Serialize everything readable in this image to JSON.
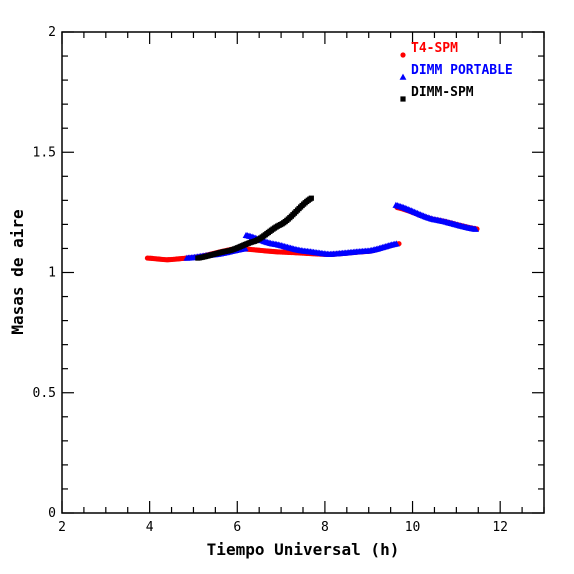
{
  "chart_data": {
    "type": "scatter",
    "xlabel": "Tiempo Universal (h)",
    "ylabel": "Masas de aire",
    "xlim": [
      2,
      13
    ],
    "ylim": [
      0,
      2
    ],
    "x_ticks": [
      "2",
      "4",
      "6",
      "8",
      "10",
      "12"
    ],
    "y_ticks": [
      "0",
      "0.5",
      "1",
      "1.5",
      "2"
    ],
    "legend_position": "top-right",
    "grid": false,
    "series": [
      {
        "name": "T4-SPM",
        "color": "#ff0000",
        "marker": "circle",
        "segments": [
          {
            "x_range": [
              3.95,
              9.7
            ],
            "anchors": [
              [
                3.95,
                1.06
              ],
              [
                4.4,
                1.053
              ],
              [
                5.0,
                1.062
              ],
              [
                6.0,
                1.1
              ],
              [
                7.0,
                1.085
              ],
              [
                8.1,
                1.075
              ],
              [
                9.0,
                1.088
              ],
              [
                9.7,
                1.12
              ]
            ]
          },
          {
            "x_range": [
              9.65,
              11.5
            ],
            "anchors": [
              [
                9.65,
                1.27
              ],
              [
                10.5,
                1.22
              ],
              [
                11.5,
                1.18
              ]
            ]
          }
        ]
      },
      {
        "name": "DIMM PORTABLE",
        "color": "#0000ff",
        "marker": "triangle",
        "segments": [
          {
            "x_range": [
              4.85,
              6.2
            ],
            "anchors": [
              [
                4.85,
                1.06
              ],
              [
                5.5,
                1.075
              ],
              [
                6.2,
                1.1
              ]
            ]
          },
          {
            "x_range": [
              6.2,
              9.65
            ],
            "anchors": [
              [
                6.2,
                1.155
              ],
              [
                6.8,
                1.12
              ],
              [
                7.5,
                1.09
              ],
              [
                8.1,
                1.076
              ],
              [
                9.0,
                1.09
              ],
              [
                9.65,
                1.12
              ]
            ]
          },
          {
            "x_range": [
              9.62,
              11.45
            ],
            "anchors": [
              [
                9.62,
                1.28
              ],
              [
                10.5,
                1.22
              ],
              [
                11.45,
                1.18
              ]
            ]
          }
        ]
      },
      {
        "name": "DIMM-SPM",
        "color": "#000000",
        "marker": "square",
        "segments": [
          {
            "x_range": [
              5.1,
              7.7
            ],
            "anchors": [
              [
                5.1,
                1.06
              ],
              [
                5.8,
                1.09
              ],
              [
                6.4,
                1.13
              ],
              [
                7.0,
                1.2
              ],
              [
                7.7,
                1.31
              ]
            ]
          }
        ]
      }
    ]
  }
}
